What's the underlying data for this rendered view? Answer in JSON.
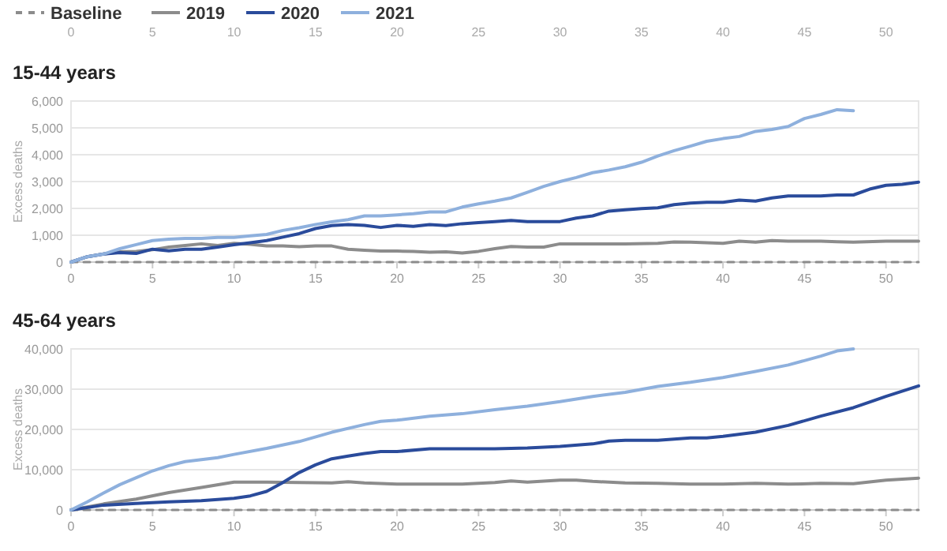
{
  "chart_data": [
    {
      "type": "line",
      "title": "15-44 years",
      "ylabel": "Excess deaths",
      "legend": "top left",
      "grid": "y",
      "marker": "none",
      "xlim": [
        0,
        52
      ],
      "xticks": [
        0,
        5,
        10,
        15,
        20,
        25,
        30,
        35,
        40,
        45,
        50
      ],
      "x2lim": [
        0,
        52
      ],
      "x2ticks": [
        0,
        5,
        10,
        15,
        20,
        25,
        30,
        35,
        40,
        45,
        50
      ],
      "ylim": [
        0,
        6000
      ],
      "yticks": [
        0,
        {
          "value": 1000,
          "label": "1,000"
        },
        {
          "value": 2000,
          "label": "2,000"
        },
        {
          "value": 3000,
          "label": "3,000"
        },
        {
          "value": 4000,
          "label": "4,000"
        },
        {
          "value": 5000,
          "label": "5,000"
        },
        {
          "value": 6000,
          "label": "6,000"
        }
      ],
      "series": [
        {
          "name": "Baseline",
          "color": "#8c8c8c",
          "line_style": "dashed",
          "x": [
            0,
            52
          ],
          "values": [
            0,
            0
          ]
        },
        {
          "name": "2019",
          "color": "#8c8c8c",
          "x": [
            0,
            1,
            2,
            3,
            4,
            5,
            6,
            7,
            8,
            9,
            10,
            11,
            12,
            13,
            14,
            15,
            16,
            17,
            18,
            19,
            20,
            21,
            22,
            23,
            24,
            25,
            26,
            27,
            28,
            29,
            30,
            32,
            34,
            36,
            37,
            38,
            40,
            41,
            42,
            43,
            44,
            46,
            47,
            48,
            50,
            52
          ],
          "values": [
            0,
            200,
            300,
            380,
            400,
            460,
            560,
            620,
            680,
            620,
            700,
            660,
            600,
            600,
            570,
            600,
            600,
            480,
            440,
            410,
            410,
            400,
            370,
            380,
            340,
            400,
            500,
            580,
            560,
            560,
            680,
            680,
            680,
            700,
            750,
            740,
            700,
            780,
            740,
            800,
            780,
            780,
            760,
            740,
            780,
            780
          ]
        },
        {
          "name": "2020",
          "color": "#2a4b9b",
          "x": [
            0,
            1,
            2,
            3,
            4,
            5,
            6,
            7,
            8,
            9,
            10,
            11,
            12,
            13,
            14,
            15,
            16,
            17,
            18,
            19,
            20,
            21,
            22,
            23,
            24,
            25,
            26,
            27,
            28,
            29,
            30,
            31,
            32,
            33,
            34,
            35,
            36,
            37,
            38,
            39,
            40,
            41,
            42,
            43,
            44,
            45,
            46,
            47,
            48,
            49,
            50,
            51,
            52
          ],
          "values": [
            0,
            200,
            300,
            350,
            320,
            480,
            420,
            480,
            480,
            560,
            650,
            720,
            800,
            930,
            1060,
            1250,
            1360,
            1400,
            1370,
            1290,
            1370,
            1330,
            1400,
            1360,
            1430,
            1470,
            1510,
            1550,
            1510,
            1510,
            1510,
            1640,
            1720,
            1900,
            1950,
            1990,
            2020,
            2140,
            2200,
            2230,
            2230,
            2310,
            2270,
            2390,
            2460,
            2460,
            2460,
            2500,
            2500,
            2720,
            2860,
            2900,
            2980
          ]
        },
        {
          "name": "2021",
          "color": "#8eb0dd",
          "x": [
            0,
            1,
            2,
            3,
            4,
            5,
            6,
            7,
            8,
            9,
            10,
            11,
            12,
            13,
            14,
            15,
            16,
            17,
            18,
            19,
            20,
            21,
            22,
            23,
            24,
            25,
            26,
            27,
            28,
            29,
            30,
            31,
            32,
            33,
            34,
            35,
            36,
            37,
            38,
            39,
            40,
            41,
            42,
            43,
            44,
            45,
            46,
            47,
            48
          ],
          "values": [
            0,
            200,
            300,
            500,
            650,
            800,
            850,
            880,
            880,
            920,
            920,
            980,
            1030,
            1180,
            1280,
            1400,
            1500,
            1580,
            1720,
            1720,
            1760,
            1800,
            1870,
            1870,
            2050,
            2170,
            2270,
            2390,
            2600,
            2820,
            3000,
            3150,
            3330,
            3430,
            3550,
            3720,
            3950,
            4150,
            4320,
            4500,
            4600,
            4680,
            4870,
            4940,
            5050,
            5350,
            5500,
            5680,
            5640
          ]
        }
      ]
    },
    {
      "type": "line",
      "title": "45-64 years",
      "ylabel": "Excess deaths",
      "grid": "y",
      "marker": "none",
      "xlim": [
        0,
        52
      ],
      "xticks": [
        0,
        5,
        10,
        15,
        20,
        25,
        30,
        35,
        40,
        45,
        50
      ],
      "ylim": [
        0,
        40000
      ],
      "yticks": [
        0,
        {
          "value": 10000,
          "label": "10,000"
        },
        {
          "value": 20000,
          "label": "20,000"
        },
        {
          "value": 30000,
          "label": "30,000"
        },
        {
          "value": 40000,
          "label": "40,000"
        }
      ],
      "series": [
        {
          "color": "#8c8c8c",
          "line_style": "dashed",
          "x": [
            0,
            52
          ],
          "values": [
            0,
            0
          ]
        },
        {
          "color": "#8c8c8c",
          "x": [
            0,
            2,
            4,
            6,
            8,
            10,
            12,
            14,
            16,
            17,
            18,
            20,
            22,
            24,
            26,
            27,
            28,
            30,
            31,
            32,
            34,
            36,
            38,
            40,
            41,
            42,
            44,
            46,
            48,
            50,
            52
          ],
          "values": [
            0,
            1500,
            2700,
            4300,
            5600,
            6900,
            6900,
            6800,
            6700,
            7000,
            6700,
            6400,
            6400,
            6400,
            6800,
            7200,
            6900,
            7400,
            7400,
            7100,
            6700,
            6600,
            6400,
            6400,
            6500,
            6600,
            6400,
            6600,
            6500,
            7400,
            7900
          ]
        },
        {
          "color": "#2a4b9b",
          "x": [
            0,
            2,
            4,
            6,
            8,
            10,
            11,
            12,
            13,
            14,
            15,
            16,
            17,
            18,
            19,
            20,
            22,
            24,
            26,
            28,
            30,
            32,
            33,
            34,
            36,
            38,
            39,
            40,
            42,
            44,
            46,
            48,
            50,
            52
          ],
          "values": [
            0,
            1200,
            1600,
            2000,
            2300,
            2900,
            3500,
            4600,
            6800,
            9300,
            11200,
            12700,
            13400,
            14000,
            14500,
            14500,
            15200,
            15200,
            15200,
            15400,
            15800,
            16400,
            17100,
            17300,
            17300,
            17900,
            17900,
            18300,
            19300,
            21000,
            23300,
            25400,
            28200,
            30800
          ]
        },
        {
          "color": "#8eb0dd",
          "x": [
            0,
            1,
            2,
            3,
            4,
            5,
            6,
            7,
            8,
            9,
            10,
            12,
            14,
            16,
            18,
            19,
            20,
            22,
            24,
            26,
            28,
            30,
            32,
            34,
            36,
            38,
            40,
            42,
            44,
            46,
            47,
            48
          ],
          "values": [
            0,
            2000,
            4200,
            6300,
            8000,
            9700,
            11000,
            12000,
            12500,
            13000,
            13800,
            15300,
            17000,
            19300,
            21200,
            22000,
            22300,
            23300,
            23900,
            24900,
            25800,
            26900,
            28200,
            29200,
            30700,
            31700,
            32900,
            34400,
            36000,
            38200,
            39500,
            40000
          ]
        }
      ]
    }
  ]
}
